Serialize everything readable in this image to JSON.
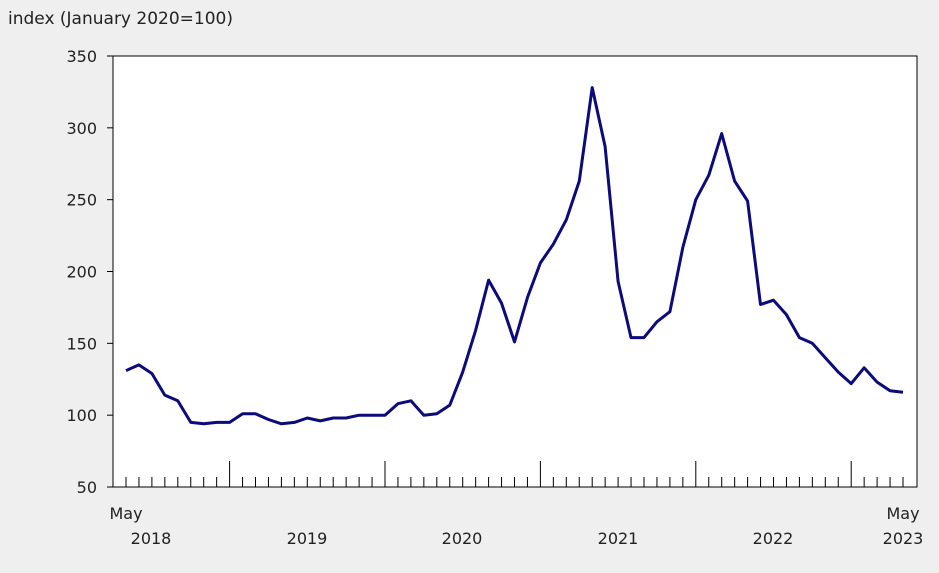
{
  "chart_data": {
    "type": "line",
    "title": "",
    "ylabel": "index (January 2020=100)",
    "xlabel": "",
    "ylim": [
      50,
      350
    ],
    "yticks": [
      50,
      100,
      150,
      200,
      250,
      300,
      350
    ],
    "grid": false,
    "x_start": "May 2018",
    "x_end": "May 2023",
    "x_tick_labels": {
      "start_month": "May",
      "start_year": "2018",
      "years": [
        "2019",
        "2020",
        "2021",
        "2022"
      ],
      "end_month": "May",
      "end_year": "2023"
    },
    "line_color": "#0b0b7a",
    "x": [
      "2018-05",
      "2018-06",
      "2018-07",
      "2018-08",
      "2018-09",
      "2018-10",
      "2018-11",
      "2018-12",
      "2019-01",
      "2019-02",
      "2019-03",
      "2019-04",
      "2019-05",
      "2019-06",
      "2019-07",
      "2019-08",
      "2019-09",
      "2019-10",
      "2019-11",
      "2019-12",
      "2020-01",
      "2020-02",
      "2020-03",
      "2020-04",
      "2020-05",
      "2020-06",
      "2020-07",
      "2020-08",
      "2020-09",
      "2020-10",
      "2020-11",
      "2020-12",
      "2021-01",
      "2021-02",
      "2021-03",
      "2021-04",
      "2021-05",
      "2021-06",
      "2021-07",
      "2021-08",
      "2021-09",
      "2021-10",
      "2021-11",
      "2021-12",
      "2022-01",
      "2022-02",
      "2022-03",
      "2022-04",
      "2022-05",
      "2022-06",
      "2022-07",
      "2022-08",
      "2022-09",
      "2022-10",
      "2022-11",
      "2022-12",
      "2023-01",
      "2023-02",
      "2023-03",
      "2023-04",
      "2023-05"
    ],
    "values": [
      131,
      135,
      129,
      114,
      110,
      95,
      94,
      95,
      95,
      101,
      101,
      97,
      94,
      95,
      98,
      96,
      98,
      98,
      100,
      100,
      100,
      108,
      110,
      100,
      101,
      107,
      130,
      159,
      194,
      178,
      151,
      182,
      206,
      219,
      236,
      263,
      328,
      287,
      193,
      154,
      154,
      165,
      172,
      217,
      250,
      267,
      296,
      263,
      249,
      177,
      180,
      170,
      154,
      150,
      140,
      130,
      122,
      133,
      123,
      117,
      116
    ]
  }
}
